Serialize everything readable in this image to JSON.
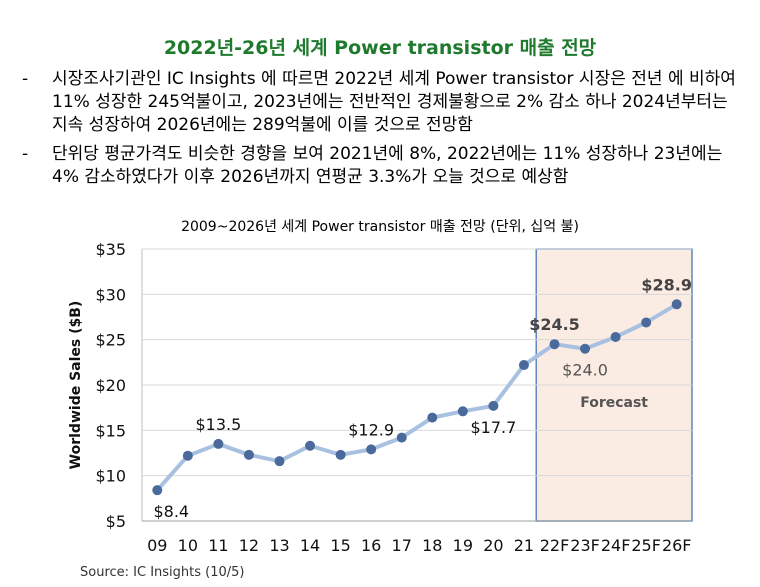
{
  "title": "2022년-26년 세계 Power transistor 매출 전망",
  "bullets": [
    {
      "dash": "-",
      "text": "시장조사기관인 IC Insights 에 따르면 2022년 세계 Power transistor 시장은 전년 에 비하여 11% 성장한 245억불이고, 2023년에는 전반적인 경제불황으로 2% 감소 하나 2024년부터는 지속 성장하여 2026년에는 289억불에 이를 것으로 전망함"
    },
    {
      "dash": "-",
      "text": "단위당 평균가격도 비슷한 경향을 보여 2021년에 8%, 2022년에는 11% 성장하나 23년에는 4% 감소하였다가 이후 2026년까지 연평균 3.3%가 오늘 것으로 예상함"
    }
  ],
  "chart_title": "2009~2026년 세계 Power transistor 매출 전망 (단위, 십억 불)",
  "source": "Source: IC Insights  (10/5)",
  "colors": {
    "title": "#1f7a2e",
    "line": "#a9c1e0",
    "marker": "#4a6a9b",
    "forecast_fill": "#fbece3",
    "forecast_border": "#5f88bd"
  },
  "chart_data": {
    "type": "line",
    "title": "2009~2026년 세계 Power transistor 매출 전망 (단위, 십억 불)",
    "xlabel": "",
    "ylabel": "Worldwide Sales ($B)",
    "categories": [
      "09",
      "10",
      "11",
      "12",
      "13",
      "14",
      "15",
      "16",
      "17",
      "18",
      "19",
      "20",
      "21",
      "22F",
      "23F",
      "24F",
      "25F",
      "26F"
    ],
    "values": [
      8.4,
      12.2,
      13.5,
      12.3,
      11.6,
      13.3,
      12.3,
      12.9,
      14.2,
      16.4,
      17.1,
      17.7,
      22.2,
      24.5,
      24.0,
      25.3,
      26.9,
      28.9
    ],
    "yticks": [
      "$5",
      "$10",
      "$15",
      "$20",
      "$25",
      "$30",
      "$35"
    ],
    "ylim": [
      5,
      35
    ],
    "grid": true,
    "forecast_label": "Forecast",
    "forecast_start": "22F",
    "annotations": [
      {
        "category": "09",
        "label": "$8.4",
        "position": "below"
      },
      {
        "category": "11",
        "label": "$13.5",
        "position": "above"
      },
      {
        "category": "16",
        "label": "$12.9",
        "position": "above"
      },
      {
        "category": "20",
        "label": "$17.7",
        "position": "below"
      },
      {
        "category": "22F",
        "label": "$24.5",
        "position": "above"
      },
      {
        "category": "23F",
        "label": "$24.0",
        "position": "below"
      },
      {
        "category": "26F",
        "label": "$28.9",
        "position": "above"
      }
    ]
  }
}
